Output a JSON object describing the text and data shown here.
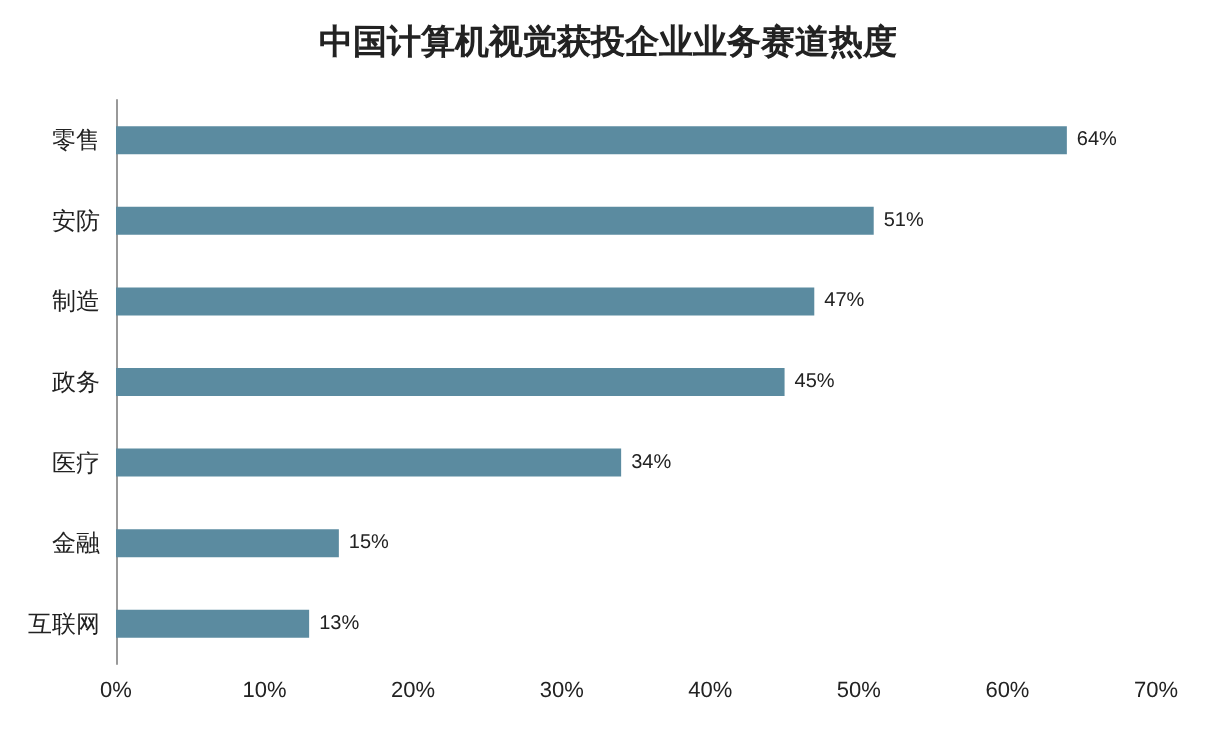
{
  "chart_data": {
    "type": "bar",
    "orientation": "horizontal",
    "title": "中国计算机视觉获投企业业务赛道热度",
    "categories": [
      "零售",
      "安防",
      "制造",
      "政务",
      "医疗",
      "金融",
      "互联网"
    ],
    "values": [
      64,
      51,
      47,
      45,
      34,
      15,
      13
    ],
    "value_labels": [
      "64%",
      "51%",
      "47%",
      "45%",
      "34%",
      "15%",
      "13%"
    ],
    "color": "#5b8ba0",
    "xlim": [
      0,
      70
    ],
    "xticks": [
      {
        "value": 0,
        "label": "0%"
      },
      {
        "value": 10,
        "label": "10%"
      },
      {
        "value": 20,
        "label": "20%"
      },
      {
        "value": 30,
        "label": "30%"
      },
      {
        "value": 40,
        "label": "40%"
      },
      {
        "value": 50,
        "label": "50%"
      },
      {
        "value": 60,
        "label": "60%"
      },
      {
        "value": 70,
        "label": "70%"
      }
    ],
    "grid": false
  }
}
